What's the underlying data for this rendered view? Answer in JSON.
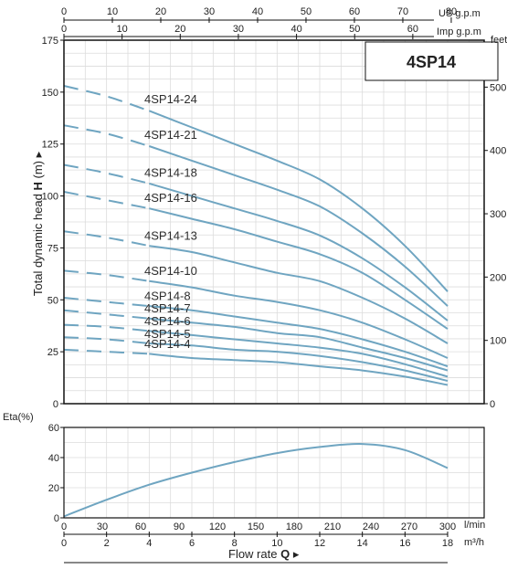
{
  "chart_data": [
    {
      "type": "line",
      "title": "4SP14",
      "ylabel": "Total dynamic head H (m)",
      "ylabel_prefix": "Total dynamic head ",
      "ylabel_symbol": "H",
      "ylabel_unit": " (m)",
      "ylim": [
        0,
        175
      ],
      "yticks": [
        0,
        25,
        50,
        75,
        100,
        125,
        150,
        175
      ],
      "xlim_m3h": [
        0,
        18
      ],
      "secondary_axes": {
        "us_gpm": {
          "unit": "US g.p.m",
          "ticks": [
            0,
            10,
            20,
            30,
            40,
            50,
            60,
            70,
            80
          ]
        },
        "imp_gpm": {
          "unit": "Imp g.p.m",
          "ticks": [
            0,
            10,
            20,
            30,
            40,
            50,
            60
          ]
        },
        "feet": {
          "unit": "feet",
          "ticks": [
            0,
            100,
            200,
            300,
            400,
            500
          ]
        }
      },
      "x": [
        0,
        2,
        4,
        6,
        8,
        10,
        12,
        14,
        16,
        18
      ],
      "series": [
        {
          "name": "4SP14-24",
          "values": [
            153,
            148,
            141,
            133,
            125,
            117,
            108,
            94,
            76,
            54
          ]
        },
        {
          "name": "4SP14-21",
          "values": [
            134,
            130,
            124,
            117,
            110,
            103,
            95,
            82,
            66,
            47
          ]
        },
        {
          "name": "4SP14-18",
          "values": [
            115,
            111,
            106,
            100,
            94,
            88,
            81,
            70,
            56,
            40
          ]
        },
        {
          "name": "4SP14-16",
          "values": [
            102,
            98,
            94,
            89,
            84,
            78,
            72,
            63,
            50,
            36
          ]
        },
        {
          "name": "4SP14-13",
          "values": [
            83,
            80,
            76,
            73,
            68,
            63,
            59,
            51,
            41,
            29
          ]
        },
        {
          "name": "4SP14-10",
          "values": [
            64,
            62,
            59,
            56,
            52,
            49,
            45,
            39,
            31,
            22
          ]
        },
        {
          "name": "4SP14-8",
          "values": [
            51,
            49,
            47,
            45,
            42,
            39,
            36,
            31,
            25,
            18
          ]
        },
        {
          "name": "4SP14-7",
          "values": [
            45,
            43,
            41,
            39,
            37,
            34,
            32,
            27,
            22,
            16
          ]
        },
        {
          "name": "4SP14-6",
          "values": [
            38,
            37,
            35,
            33,
            31,
            29,
            27,
            24,
            19,
            13
          ]
        },
        {
          "name": "4SP14-5",
          "values": [
            32,
            31,
            29,
            28,
            26,
            25,
            23,
            20,
            16,
            11
          ]
        },
        {
          "name": "4SP14-4",
          "values": [
            26,
            25,
            24,
            22,
            21,
            20,
            18,
            16,
            13,
            9
          ]
        }
      ]
    },
    {
      "type": "line",
      "ylabel": "Eta(%)",
      "ylim": [
        0,
        60
      ],
      "yticks": [
        0,
        20,
        40,
        60
      ],
      "xlabel": "Flow rate Q",
      "xlabel_text": "Flow  rate  ",
      "xlabel_symbol": "Q",
      "x_m3h": {
        "unit": "m³/h",
        "ticks": [
          0,
          2,
          4,
          6,
          8,
          10,
          12,
          14,
          16,
          18
        ]
      },
      "x_lmin": {
        "unit": "l/min",
        "ticks": [
          0,
          30,
          60,
          90,
          120,
          150,
          180,
          210,
          240,
          270,
          300
        ]
      },
      "x": [
        0,
        2,
        4,
        6,
        8,
        10,
        12,
        14,
        16,
        18
      ],
      "series": [
        {
          "values": [
            1,
            12,
            22,
            30,
            37,
            43,
            47,
            49,
            45,
            33
          ]
        }
      ]
    }
  ],
  "colors": {
    "curve": "#6fa5c1",
    "grid": "#dcdcdc",
    "frame": "#111111",
    "title": "#5a9ec9"
  }
}
